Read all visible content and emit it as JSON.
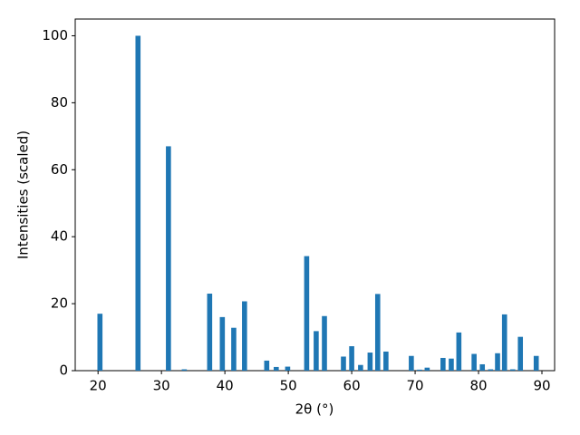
{
  "chart_data": {
    "type": "bar",
    "x_label": "2θ (°)",
    "y_label": "Intensities (scaled)",
    "x": [
      20.3,
      26.3,
      31.1,
      33.6,
      37.6,
      39.6,
      41.4,
      43.1,
      46.6,
      48.1,
      49.9,
      52.9,
      54.4,
      55.7,
      58.7,
      60.0,
      61.4,
      62.9,
      64.1,
      65.4,
      69.4,
      70.7,
      71.9,
      74.4,
      75.7,
      76.9,
      79.3,
      80.6,
      81.9,
      83.0,
      84.1,
      85.4,
      86.6,
      89.1
    ],
    "values": [
      17,
      100,
      67,
      0.4,
      23,
      16,
      12.8,
      20.7,
      3,
      1.1,
      1.2,
      34.2,
      11.8,
      16.3,
      4.2,
      7.3,
      1.7,
      5.4,
      22.9,
      5.7,
      4.4,
      0.3,
      0.9,
      3.8,
      3.6,
      11.4,
      5,
      1.9,
      0.4,
      5.2,
      16.8,
      0.4,
      10.1,
      4.4
    ],
    "color": "#1f77b4",
    "xlim": [
      16.4,
      92
    ],
    "xticks": [
      20,
      30,
      40,
      50,
      60,
      70,
      80,
      90
    ],
    "ylim": [
      0,
      105
    ],
    "yticks": [
      0,
      20,
      40,
      60,
      80,
      100
    ],
    "grid": false
  }
}
